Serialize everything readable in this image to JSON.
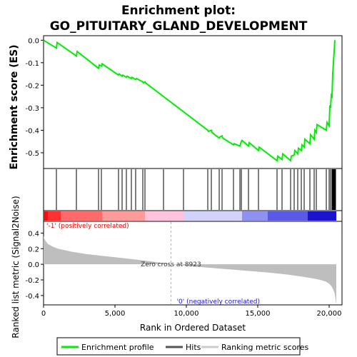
{
  "chart_data": {
    "type": "line",
    "title_line1": "Enrichment plot:",
    "title_line2": "GO_PITUITARY_GLAND_DEVELOPMENT",
    "ylabel_top": "Enrichment score (ES)",
    "ylabel_bottom": "Ranked list metric (Signal2Noise)",
    "xlabel": "Rank in Ordered Dataset",
    "x_ticks": [
      0,
      5000,
      10000,
      15000,
      20000
    ],
    "x_tick_labels": [
      "0",
      "5,000",
      "10,000",
      "15,000",
      "20,000"
    ],
    "es_y_ticks": [
      0.0,
      -0.1,
      -0.2,
      -0.3,
      -0.4,
      -0.5
    ],
    "es_y_tick_labels": [
      "0.0",
      "-0.1",
      "-0.2",
      "-0.3",
      "-0.4",
      "-0.5"
    ],
    "es_ylim": [
      -0.57,
      0.02
    ],
    "metric_y_ticks": [
      0.4,
      0.2,
      0.0,
      -0.2,
      -0.4
    ],
    "metric_y_tick_labels": [
      "0.4",
      "0.2",
      "0.0",
      "-0.2",
      "-0.4"
    ],
    "metric_ylim": [
      -0.52,
      0.55
    ],
    "xlim": [
      0,
      20900
    ],
    "n_genes": 20500,
    "zero_cross": 8923,
    "zero_cross_label": "Zero cross at 8923",
    "pos_label": "'-1' (positively correlated)",
    "neg_label": "'0' (negatively correlated)",
    "enrichment_profile": {
      "x": [
        0,
        900,
        950,
        2300,
        2350,
        3850,
        3900,
        4050,
        4100,
        5250,
        5300,
        5500,
        5550,
        5800,
        5850,
        6150,
        6200,
        6450,
        6500,
        6950,
        7000,
        7100,
        7150,
        11500,
        11550,
        11750,
        11800,
        12300,
        12350,
        12500,
        12550,
        13300,
        13350,
        13750,
        13800,
        13850,
        13900,
        14350,
        14400,
        15050,
        15100,
        16350,
        16400,
        16700,
        16750,
        17300,
        17350,
        17550,
        17600,
        17800,
        17850,
        18050,
        18100,
        18250,
        18300,
        18650,
        18700,
        18950,
        19000,
        19100,
        19150,
        19800,
        19850,
        20000,
        20050,
        20100,
        20150,
        20200,
        20250,
        20300,
        20350,
        20400
      ],
      "y": [
        0.0,
        -0.035,
        -0.01,
        -0.07,
        -0.05,
        -0.125,
        -0.11,
        -0.115,
        -0.105,
        -0.155,
        -0.15,
        -0.16,
        -0.155,
        -0.165,
        -0.16,
        -0.17,
        -0.165,
        -0.175,
        -0.17,
        -0.185,
        -0.19,
        -0.185,
        -0.19,
        -0.4,
        -0.405,
        -0.4,
        -0.41,
        -0.435,
        -0.43,
        -0.425,
        -0.435,
        -0.465,
        -0.46,
        -0.47,
        -0.46,
        -0.45,
        -0.445,
        -0.47,
        -0.455,
        -0.49,
        -0.475,
        -0.535,
        -0.515,
        -0.53,
        -0.505,
        -0.535,
        -0.515,
        -0.51,
        -0.49,
        -0.505,
        -0.48,
        -0.49,
        -0.465,
        -0.475,
        -0.44,
        -0.46,
        -0.42,
        -0.44,
        -0.4,
        -0.41,
        -0.375,
        -0.4,
        -0.365,
        -0.38,
        -0.29,
        -0.3,
        -0.245,
        -0.25,
        -0.15,
        -0.1,
        -0.05,
        0.0
      ]
    },
    "hits": [
      900,
      2300,
      3850,
      4050,
      5250,
      5500,
      5800,
      6150,
      6450,
      6950,
      7100,
      8400,
      9800,
      11500,
      11750,
      12300,
      12500,
      13300,
      13750,
      13850,
      14350,
      15050,
      16350,
      16700,
      17300,
      17550,
      17800,
      18050,
      18250,
      18650,
      18950,
      19100,
      19800,
      20000,
      20100,
      20200,
      20250,
      20300,
      20350,
      20400,
      20450
    ],
    "heatmap_bands": [
      {
        "from": 0,
        "to": 300,
        "color": "#ee1111"
      },
      {
        "from": 300,
        "to": 1200,
        "color": "#ff3030"
      },
      {
        "from": 1200,
        "to": 4100,
        "color": "#ff6a6a"
      },
      {
        "from": 4100,
        "to": 7100,
        "color": "#ff9a9a"
      },
      {
        "from": 7100,
        "to": 9800,
        "color": "#ffc4dc"
      },
      {
        "from": 9800,
        "to": 13900,
        "color": "#d2d2fa"
      },
      {
        "from": 13900,
        "to": 15700,
        "color": "#9090f0"
      },
      {
        "from": 15700,
        "to": 18500,
        "color": "#5a5ae6"
      },
      {
        "from": 18500,
        "to": 20500,
        "color": "#1c14cc"
      }
    ],
    "metric_curve": {
      "x": [
        0,
        100,
        300,
        600,
        1000,
        1500,
        2000,
        3000,
        4000,
        5000,
        6000,
        7000,
        8000,
        8923,
        10000,
        11000,
        12000,
        13000,
        14000,
        15000,
        16000,
        17000,
        18000,
        19000,
        19500,
        19800,
        20000,
        20200,
        20300,
        20400,
        20450,
        20500
      ],
      "y": [
        0.36,
        0.31,
        0.26,
        0.23,
        0.2,
        0.18,
        0.16,
        0.13,
        0.11,
        0.09,
        0.07,
        0.05,
        0.025,
        0.0,
        -0.02,
        -0.035,
        -0.05,
        -0.065,
        -0.08,
        -0.095,
        -0.11,
        -0.13,
        -0.155,
        -0.185,
        -0.205,
        -0.225,
        -0.25,
        -0.29,
        -0.33,
        -0.38,
        -0.45,
        -0.52
      ]
    },
    "legend": [
      "Enrichment profile",
      "Hits",
      "Ranking metric scores"
    ],
    "colors": {
      "profile": "#00ee00",
      "hits": "#000000",
      "metric_fill": "#bebebe",
      "pos_label": "#ee0000",
      "neg_label": "#1c14cc",
      "zero_line": "#b0b0b0"
    }
  }
}
